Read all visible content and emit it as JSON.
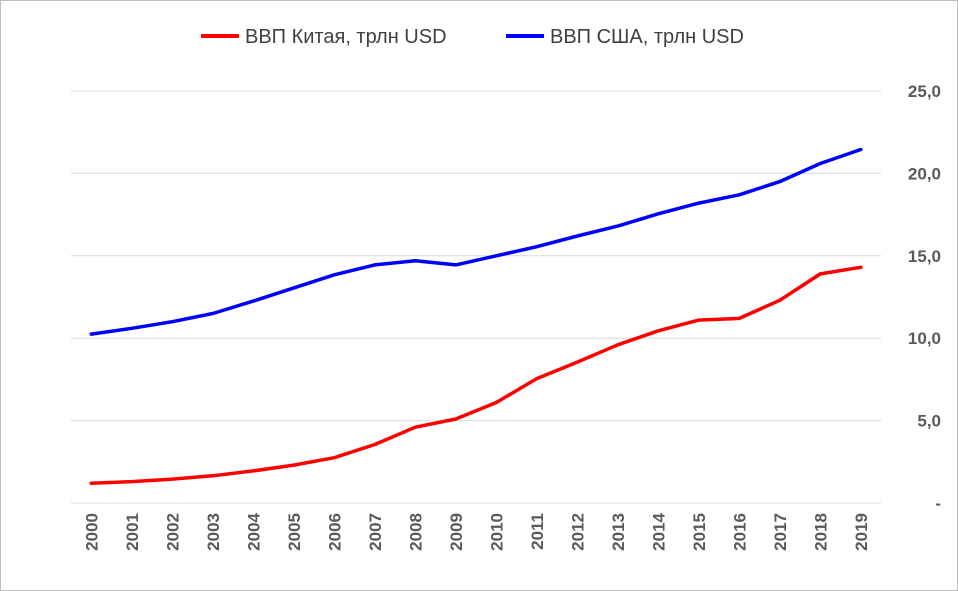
{
  "chart_data": {
    "type": "line",
    "title": "",
    "x": [
      "2000",
      "2001",
      "2002",
      "2003",
      "2004",
      "2005",
      "2006",
      "2007",
      "2008",
      "2009",
      "2010",
      "2011",
      "2012",
      "2013",
      "2014",
      "2015",
      "2016",
      "2017",
      "2018",
      "2019"
    ],
    "series": [
      {
        "name": "ВВП Китая, трлн USD",
        "color": "#ff0000",
        "values": [
          1.2,
          1.3,
          1.45,
          1.65,
          1.95,
          2.3,
          2.75,
          3.55,
          4.6,
          5.1,
          6.1,
          7.55,
          8.55,
          9.6,
          10.45,
          11.1,
          11.2,
          12.3,
          13.9,
          14.3
        ]
      },
      {
        "name": "ВВП США, трлн USD",
        "color": "#0000ff",
        "values": [
          10.25,
          10.6,
          11.0,
          11.5,
          12.25,
          13.05,
          13.85,
          14.45,
          14.7,
          14.45,
          15.0,
          15.55,
          16.2,
          16.8,
          17.55,
          18.2,
          18.7,
          19.5,
          20.6,
          21.45
        ]
      }
    ],
    "ylim": [
      0,
      25
    ],
    "yticks": [
      {
        "value": 0,
        "label": "-"
      },
      {
        "value": 5,
        "label": "5,0"
      },
      {
        "value": 10,
        "label": "10,0"
      },
      {
        "value": 15,
        "label": "15,0"
      },
      {
        "value": 20,
        "label": "20,0"
      },
      {
        "value": 25,
        "label": "25,0"
      }
    ],
    "y_axis_side": "right",
    "grid": true,
    "legend_position": "top"
  }
}
